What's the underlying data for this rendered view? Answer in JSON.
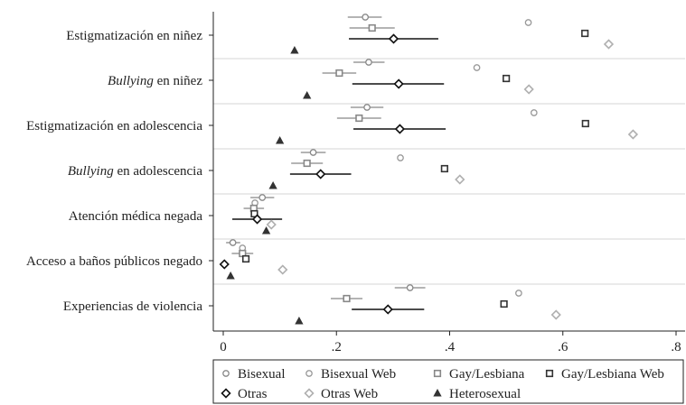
{
  "chart_data": {
    "type": "scatter",
    "orientation": "horizontal",
    "categories": [
      {
        "prefix": "",
        "italic": "",
        "suffix": "Estigmatización en niñez"
      },
      {
        "prefix": "",
        "italic": "Bullying",
        "suffix": " en niñez"
      },
      {
        "prefix": "",
        "italic": "",
        "suffix": "Estigmatización en adolescencia"
      },
      {
        "prefix": "",
        "italic": "Bullying",
        "suffix": " en adolescencia"
      },
      {
        "prefix": "",
        "italic": "",
        "suffix": "Atención médica negada"
      },
      {
        "prefix": "",
        "italic": "",
        "suffix": "Acceso a baños públicos negado"
      },
      {
        "prefix": "",
        "italic": "",
        "suffix": "Experiencias de violencia"
      }
    ],
    "xlim": [
      0,
      0.8
    ],
    "xticks": [
      0,
      0.2,
      0.4,
      0.6,
      0.8
    ],
    "xtick_labels": [
      "0",
      ".2",
      ".4",
      ".6",
      ".8"
    ],
    "grid": "horizontal separators between categories",
    "legend_position": "bottom",
    "series": [
      {
        "name": "Bisexual",
        "marker": "circle",
        "color": "#888888",
        "filled": false,
        "values": [
          0.251,
          0.257,
          0.254,
          0.159,
          0.069,
          0.017,
          0.33
        ],
        "ci": [
          [
            0.22,
            0.28
          ],
          [
            0.23,
            0.285
          ],
          [
            0.225,
            0.283
          ],
          [
            0.137,
            0.181
          ],
          [
            0.048,
            0.09
          ],
          [
            0.005,
            0.03
          ],
          [
            0.303,
            0.357
          ]
        ]
      },
      {
        "name": "Bisexual Web",
        "marker": "circle",
        "color": "#999999",
        "filled": false,
        "values": [
          0.539,
          0.448,
          0.549,
          0.313,
          0.056,
          0.034,
          0.522
        ],
        "ci": null
      },
      {
        "name": "Gay/Lesbiana",
        "marker": "square",
        "color": "#888888",
        "filled": false,
        "values": [
          0.263,
          0.205,
          0.24,
          0.148,
          0.054,
          0.034,
          0.218
        ],
        "ci": [
          [
            0.223,
            0.303
          ],
          [
            0.175,
            0.235
          ],
          [
            0.201,
            0.279
          ],
          [
            0.12,
            0.176
          ],
          [
            0.036,
            0.072
          ],
          [
            0.015,
            0.053
          ],
          [
            0.19,
            0.246
          ]
        ]
      },
      {
        "name": "Gay/Lesbiana Web",
        "marker": "square",
        "color": "#333333",
        "filled": false,
        "values": [
          0.639,
          0.5,
          0.64,
          0.391,
          0.055,
          0.04,
          0.496
        ],
        "ci": null
      },
      {
        "name": "Otras",
        "marker": "diamond",
        "color": "#111111",
        "filled": false,
        "values": [
          0.301,
          0.31,
          0.312,
          0.172,
          0.06,
          0.002,
          0.291
        ],
        "ci": [
          [
            0.222,
            0.38
          ],
          [
            0.228,
            0.39
          ],
          [
            0.23,
            0.393
          ],
          [
            0.118,
            0.226
          ],
          [
            0.016,
            0.104
          ],
          [
            0.0,
            0.007
          ],
          [
            0.227,
            0.355
          ]
        ]
      },
      {
        "name": "Otras Web",
        "marker": "diamond",
        "color": "#b0b0b0",
        "filled": false,
        "values": [
          0.681,
          0.54,
          0.724,
          0.418,
          0.085,
          0.105,
          0.588
        ],
        "ci": null
      },
      {
        "name": "Heterosexual",
        "marker": "triangle",
        "color": "#333333",
        "filled": true,
        "values": [
          0.126,
          0.148,
          0.1,
          0.088,
          0.076,
          0.013,
          0.134
        ],
        "ci": null
      }
    ]
  }
}
